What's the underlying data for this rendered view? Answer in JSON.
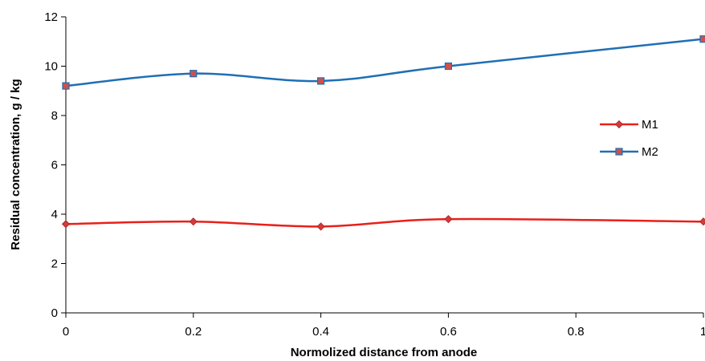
{
  "chart_data": {
    "type": "line",
    "title": "",
    "xlabel": "Normolized distance from anode",
    "ylabel": "Residual concentration, g / kg",
    "xlim": [
      0,
      1
    ],
    "ylim": [
      0,
      12
    ],
    "x_ticks": [
      "0",
      "0.2",
      "0.4",
      "0.6",
      "0.8",
      "1"
    ],
    "y_ticks": [
      "0",
      "2",
      "4",
      "6",
      "8",
      "10",
      "12"
    ],
    "x": [
      0,
      0.2,
      0.4,
      0.6,
      1.0
    ],
    "grid": false,
    "smooth": true,
    "legend_position": "right",
    "series": [
      {
        "name": "M1",
        "color": "#e8201a",
        "marker": "diamond",
        "marker_color": "#d43a3a",
        "values": [
          3.6,
          3.7,
          3.5,
          3.8,
          3.7
        ]
      },
      {
        "name": "M2",
        "color": "#1f6fb4",
        "marker": "square",
        "marker_color": "#d0504a",
        "values": [
          9.2,
          9.7,
          9.4,
          10.0,
          11.1
        ]
      }
    ]
  }
}
